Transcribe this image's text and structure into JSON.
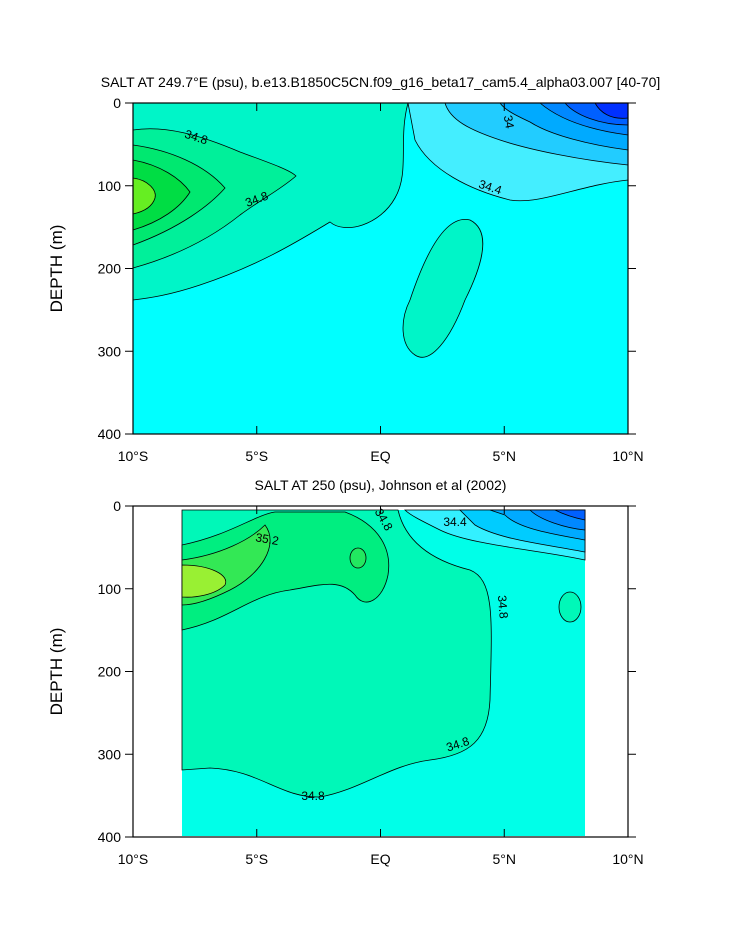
{
  "chart_data": [
    {
      "type": "contour",
      "title": "SALT AT 249.7°E (psu), b.e13.B1850C5CN.f09_g16_beta17_cam5.4_alpha03.007 [40-70]",
      "ylabel": "DEPTH (m)",
      "xlim": [
        -10,
        10
      ],
      "xticks": [
        {
          "value": -10,
          "label": "10°S"
        },
        {
          "value": -5,
          "label": "5°S"
        },
        {
          "value": 0,
          "label": "EQ"
        },
        {
          "value": 5,
          "label": "5°N"
        },
        {
          "value": 10,
          "label": "10°N"
        }
      ],
      "ylim": [
        0,
        400
      ],
      "yticks": [
        0,
        100,
        200,
        300,
        400
      ],
      "contour_labels": [
        34.8,
        34.8,
        34,
        34.4
      ]
    },
    {
      "type": "contour",
      "title": "SALT AT 250 (psu), Johnson et al (2002)",
      "ylabel": "DEPTH (m)",
      "xlim": [
        -10,
        10
      ],
      "xticks": [
        {
          "value": -10,
          "label": "10°S"
        },
        {
          "value": -5,
          "label": "5°S"
        },
        {
          "value": 0,
          "label": "EQ"
        },
        {
          "value": 5,
          "label": "5°N"
        },
        {
          "value": 10,
          "label": "10°N"
        }
      ],
      "ylim": [
        0,
        400
      ],
      "yticks": [
        0,
        100,
        200,
        300,
        400
      ],
      "contour_labels": [
        35.2,
        34.8,
        34.4,
        34.8,
        34.8,
        34.8
      ]
    }
  ]
}
